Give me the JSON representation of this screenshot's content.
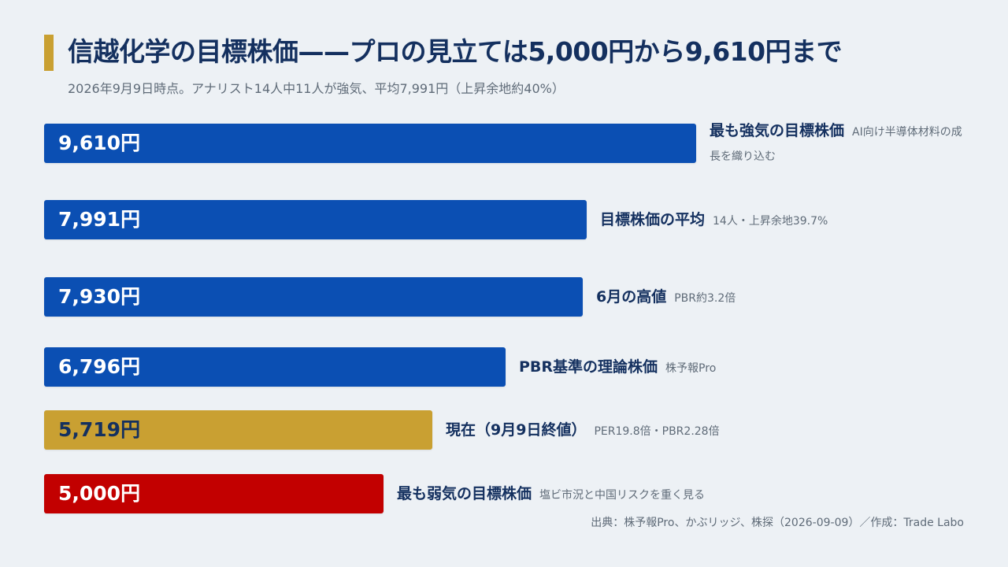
{
  "title": "信越化学の目標株価——プロの見立ては5,000円から9,610円まで",
  "subtitle": "2026年9月9日時点。アナリスト14人中11人が強気、平均7,991円（上昇余地約40%）",
  "source": "出典：株予報Pro、かぶリッジ、株探（2026-09-09）／作成：Trade Labo",
  "colors": {
    "accent": "#c9a032",
    "target": "#0b4fb3",
    "current": "#c9a032",
    "low": "#c20000",
    "text": "#14305f",
    "muted": "#5f6b78"
  },
  "chart_data": {
    "type": "bar",
    "orientation": "horizontal",
    "title": "信越化学の目標株価——プロの見立ては5,000円から9,610円まで",
    "unit": "円",
    "categories": [
      "最も強気の目標株価",
      "目標株価の平均",
      "6月の高値",
      "PBR基準の理論株価",
      "現在（9月9日終値）",
      "最も弱気の目標株価"
    ],
    "values": [
      9610,
      7991,
      7930,
      6796,
      5719,
      5000
    ],
    "bars": [
      {
        "value": 9610,
        "value_label": "9,610円",
        "label": "最も強気の目標株価",
        "note": "AI向け半導体材料の成長を織り込む",
        "color": "#0b4fb3",
        "text_dark": false
      },
      {
        "value": 7991,
        "value_label": "7,991円",
        "label": "目標株価の平均",
        "note": "14人・上昇余地39.7%",
        "color": "#0b4fb3",
        "text_dark": false
      },
      {
        "value": 7930,
        "value_label": "7,930円",
        "label": "6月の高値",
        "note": "PBR約3.2倍",
        "color": "#0b4fb3",
        "text_dark": false
      },
      {
        "value": 6796,
        "value_label": "6,796円",
        "label": "PBR基準の理論株価",
        "note": "株予報Pro",
        "color": "#0b4fb3",
        "text_dark": false
      },
      {
        "value": 5719,
        "value_label": "5,719円",
        "label": "現在（9月9日終値）",
        "note": "PER19.8倍・PBR2.28倍",
        "color": "#c9a032",
        "text_dark": true
      },
      {
        "value": 5000,
        "value_label": "5,000円",
        "label": "最も弱気の目標株価",
        "note": "塩ビ市況と中国リスクを重く見る",
        "color": "#c20000",
        "text_dark": false
      }
    ]
  }
}
